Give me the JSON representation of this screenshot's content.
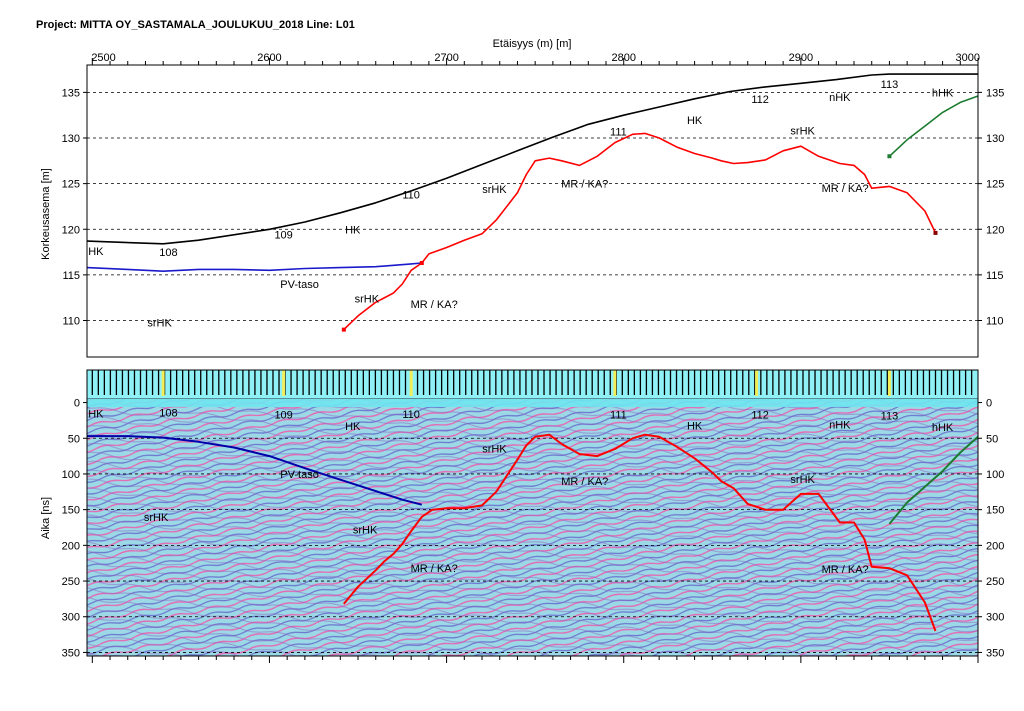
{
  "header": {
    "title": "Project: MITTA OY_SASTAMALA_JOULUKUU_2018  Line: L01"
  },
  "chart_data": [
    {
      "type": "line",
      "xlabel": "Etäisyys (m) [m]",
      "ylabel": "Korkeusasema [m]",
      "xlim": [
        2497,
        3000
      ],
      "ylim": [
        106,
        138
      ],
      "xticks": [
        2500,
        2600,
        2700,
        2800,
        2900,
        3000
      ],
      "yticks": [
        110,
        115,
        120,
        125,
        130,
        135
      ],
      "grid": true,
      "series": [
        {
          "color": "#000000",
          "x": [
            2497,
            2540,
            2560,
            2600,
            2620,
            2640,
            2660,
            2680,
            2700,
            2720,
            2740,
            2760,
            2780,
            2800,
            2820,
            2840,
            2860,
            2880,
            2900,
            2920,
            2940,
            2950,
            3000
          ],
          "y": [
            118.7,
            118.4,
            118.8,
            120.0,
            120.8,
            121.8,
            122.9,
            124.2,
            125.6,
            127.1,
            128.6,
            130.1,
            131.5,
            132.5,
            133.4,
            134.3,
            135.1,
            135.6,
            136.0,
            136.4,
            136.9,
            137.0,
            137.0
          ]
        },
        {
          "color": "#1a1acc",
          "x": [
            2497,
            2520,
            2540,
            2560,
            2580,
            2600,
            2620,
            2640,
            2660,
            2680,
            2686
          ],
          "y": [
            115.8,
            115.6,
            115.4,
            115.6,
            115.6,
            115.5,
            115.7,
            115.8,
            115.9,
            116.2,
            116.3
          ]
        },
        {
          "color": "#ff0000",
          "x": [
            2642,
            2650,
            2660,
            2670,
            2675,
            2680,
            2686,
            2690,
            2700,
            2710,
            2720,
            2728,
            2740,
            2745,
            2750,
            2758,
            2765,
            2775,
            2785,
            2795,
            2805,
            2812,
            2820,
            2830,
            2840,
            2850,
            2855,
            2862,
            2870,
            2880,
            2890,
            2900,
            2910,
            2916,
            2922,
            2930,
            2936,
            2940,
            2950,
            2960,
            2970,
            2976
          ],
          "y": [
            109.0,
            110.5,
            112.0,
            113.0,
            114.0,
            115.5,
            116.3,
            117.3,
            118.0,
            118.8,
            119.5,
            121.0,
            124.0,
            126.0,
            127.5,
            127.8,
            127.5,
            127.0,
            128.0,
            129.5,
            130.4,
            130.5,
            130.0,
            129.0,
            128.3,
            127.8,
            127.5,
            127.2,
            127.3,
            127.6,
            128.6,
            129.1,
            128.0,
            127.6,
            127.2,
            127.0,
            126.0,
            124.5,
            124.7,
            124.0,
            122.0,
            119.6
          ]
        },
        {
          "color": "#1c7c30",
          "x": [
            2950,
            2960,
            2970,
            2980,
            2990,
            3000
          ],
          "y": [
            128.0,
            129.8,
            131.3,
            132.8,
            133.9,
            134.6
          ]
        }
      ],
      "annotations": [
        {
          "text": "HK",
          "x": 2502,
          "y": 117.6
        },
        {
          "text": "108",
          "x": 2543,
          "y": 117.5
        },
        {
          "text": "PV-taso",
          "x": 2617,
          "y": 114.0
        },
        {
          "text": "srHK",
          "x": 2538,
          "y": 109.8
        },
        {
          "text": "109",
          "x": 2608,
          "y": 119.4
        },
        {
          "text": "HK",
          "x": 2647,
          "y": 120.0
        },
        {
          "text": "110",
          "x": 2680,
          "y": 123.8
        },
        {
          "text": "srHK",
          "x": 2655,
          "y": 112.4
        },
        {
          "text": "MR / KA?",
          "x": 2693,
          "y": 111.8
        },
        {
          "text": "srHK",
          "x": 2727,
          "y": 124.4
        },
        {
          "text": "MR / KA?",
          "x": 2778,
          "y": 125.0
        },
        {
          "text": "111",
          "x": 2797,
          "y": 130.7
        },
        {
          "text": "HK",
          "x": 2840,
          "y": 132.0
        },
        {
          "text": "112",
          "x": 2877,
          "y": 134.3
        },
        {
          "text": "srHK",
          "x": 2901,
          "y": 130.8
        },
        {
          "text": "nHK",
          "x": 2922,
          "y": 134.5
        },
        {
          "text": "113",
          "x": 2950,
          "y": 135.9
        },
        {
          "text": "hHK",
          "x": 2980,
          "y": 135.0
        },
        {
          "text": "MR / KA?",
          "x": 2925,
          "y": 124.5
        }
      ]
    },
    {
      "type": "line",
      "ylabel": "Aika [ns]",
      "xlim": [
        2497,
        3000
      ],
      "ylim": [
        355,
        -5
      ],
      "yticks": [
        0,
        50,
        100,
        150,
        200,
        250,
        300,
        350
      ],
      "grid": true,
      "series": [
        {
          "color": "#0000aa",
          "x": [
            2497,
            2520,
            2540,
            2560,
            2580,
            2600,
            2620,
            2640,
            2660,
            2675,
            2686
          ],
          "y": [
            47,
            47,
            49,
            55,
            63,
            75,
            92,
            108,
            124,
            136,
            143
          ]
        },
        {
          "color": "#ff0000",
          "x": [
            2642,
            2650,
            2660,
            2665,
            2670,
            2675,
            2680,
            2686,
            2692,
            2700,
            2710,
            2720,
            2728,
            2740,
            2745,
            2750,
            2758,
            2765,
            2775,
            2785,
            2795,
            2805,
            2812,
            2820,
            2830,
            2840,
            2850,
            2855,
            2862,
            2870,
            2880,
            2890,
            2900,
            2910,
            2916,
            2922,
            2930,
            2936,
            2940,
            2950,
            2960,
            2970,
            2976
          ],
          "y": [
            282,
            258,
            235,
            222,
            212,
            198,
            180,
            160,
            150,
            148,
            148,
            144,
            125,
            80,
            60,
            48,
            45,
            58,
            72,
            75,
            65,
            50,
            45,
            48,
            62,
            78,
            98,
            110,
            120,
            142,
            150,
            150,
            128,
            128,
            148,
            168,
            168,
            192,
            230,
            232,
            242,
            280,
            320
          ]
        },
        {
          "color": "#1c7c30",
          "x": [
            2950,
            2960,
            2970,
            2980,
            2990,
            3000
          ],
          "y": [
            170,
            140,
            118,
            96,
            70,
            48
          ]
        }
      ],
      "annotations": [
        {
          "text": "HK",
          "x": 2502,
          "y": 15
        },
        {
          "text": "108",
          "x": 2543,
          "y": 14
        },
        {
          "text": "109",
          "x": 2608,
          "y": 17
        },
        {
          "text": "HK",
          "x": 2647,
          "y": 33
        },
        {
          "text": "110",
          "x": 2680,
          "y": 16
        },
        {
          "text": "PV-taso",
          "x": 2617,
          "y": 100
        },
        {
          "text": "srHK",
          "x": 2536,
          "y": 160
        },
        {
          "text": "srHK",
          "x": 2654,
          "y": 178
        },
        {
          "text": "MR / KA?",
          "x": 2693,
          "y": 232
        },
        {
          "text": "srHK",
          "x": 2727,
          "y": 64
        },
        {
          "text": "MR / KA?",
          "x": 2778,
          "y": 110
        },
        {
          "text": "111",
          "x": 2797,
          "y": 17
        },
        {
          "text": "HK",
          "x": 2840,
          "y": 32
        },
        {
          "text": "112",
          "x": 2877,
          "y": 17
        },
        {
          "text": "srHK",
          "x": 2901,
          "y": 107
        },
        {
          "text": "nHK",
          "x": 2922,
          "y": 31
        },
        {
          "text": "113",
          "x": 2950,
          "y": 18
        },
        {
          "text": "hHK",
          "x": 2980,
          "y": 34
        },
        {
          "text": "MR / KA?",
          "x": 2925,
          "y": 233
        }
      ]
    }
  ]
}
